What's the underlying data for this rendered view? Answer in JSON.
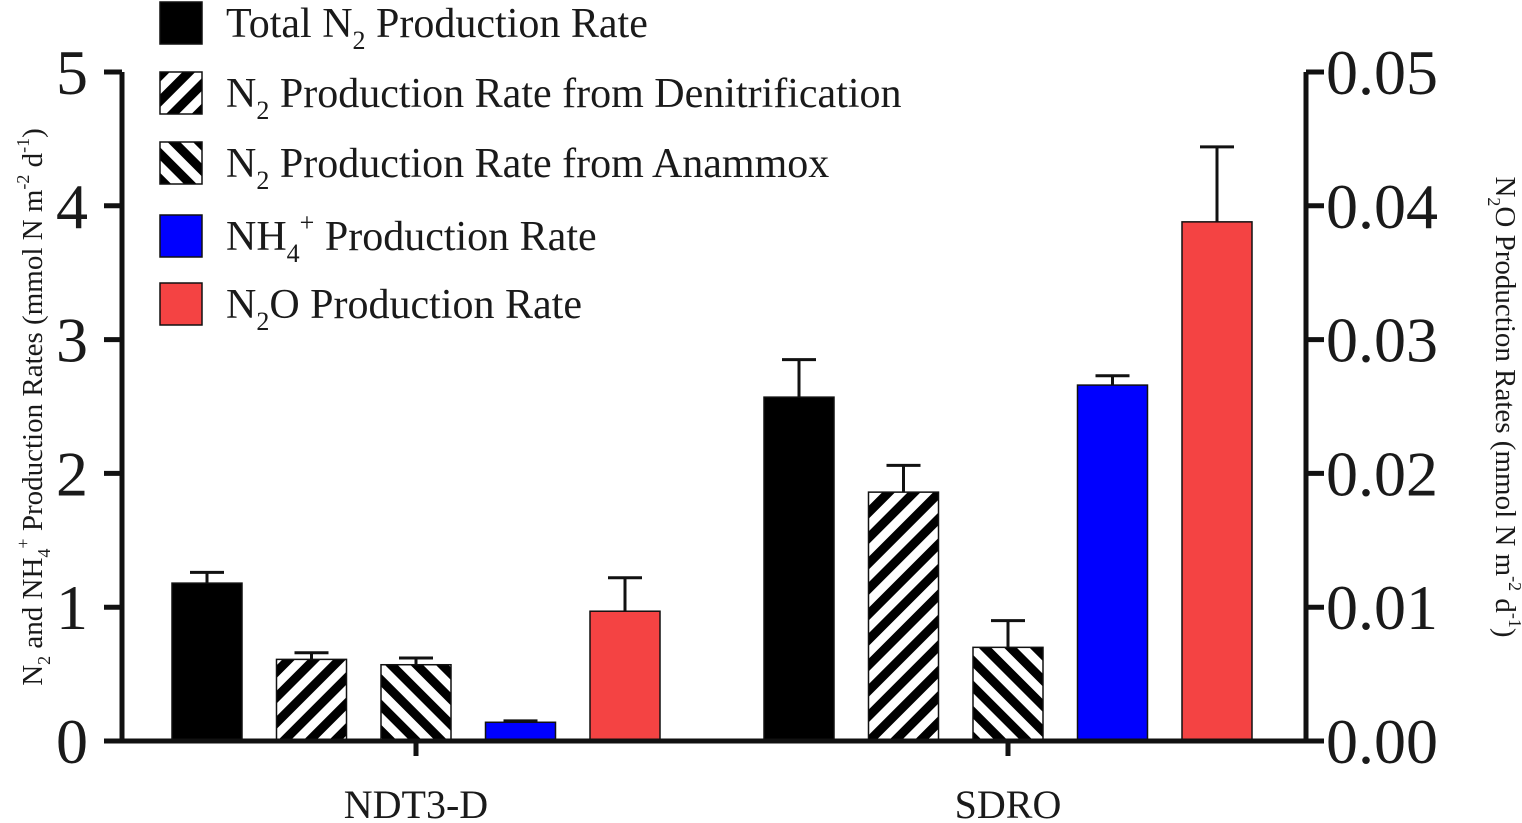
{
  "chart_data": {
    "type": "bar",
    "categories": [
      "NDT3-D",
      "SDRO"
    ],
    "left_axis": {
      "label_parts": [
        "N",
        "2",
        " and NH",
        "4",
        "+",
        " Production Rates (mmol N m",
        "-2",
        " d",
        "-1",
        ")"
      ],
      "ylim": [
        0,
        5
      ],
      "ticks": [
        "0",
        "1",
        "2",
        "3",
        "4",
        "5"
      ]
    },
    "right_axis": {
      "label_parts": [
        "N",
        "2",
        "O Production Rates (mmol N m",
        "-2",
        " d",
        "-1",
        ")"
      ],
      "ylim": [
        0,
        0.05
      ],
      "ticks": [
        "0.00",
        "0.01",
        "0.02",
        "0.03",
        "0.04",
        "0.05"
      ]
    },
    "series": [
      {
        "key": "total_n2",
        "legend_parts": [
          "Total N",
          "2",
          " Production Rate"
        ],
        "axis": "left",
        "fill": "black",
        "color": "#000000",
        "values": [
          1.18,
          2.57
        ],
        "errors": [
          0.08,
          0.28
        ]
      },
      {
        "key": "denitrification",
        "legend_parts": [
          "N",
          "2",
          " Production Rate from Denitrification"
        ],
        "axis": "left",
        "fill": "hatch-back",
        "color": "#000000",
        "values": [
          0.61,
          1.86
        ],
        "errors": [
          0.05,
          0.2
        ]
      },
      {
        "key": "anammox",
        "legend_parts": [
          "N",
          "2",
          " Production Rate from Anammox"
        ],
        "axis": "left",
        "fill": "hatch-forward",
        "color": "#000000",
        "values": [
          0.57,
          0.7
        ],
        "errors": [
          0.05,
          0.2
        ]
      },
      {
        "key": "nh4",
        "legend_parts": [
          "NH",
          "4",
          "+",
          " Production Rate"
        ],
        "axis": "left",
        "fill": "blue",
        "color": "#0000ff",
        "values": [
          0.14,
          2.66
        ],
        "errors": [
          0.01,
          0.07
        ]
      },
      {
        "key": "n2o",
        "legend_parts": [
          "N",
          "2",
          "O Production Rate"
        ],
        "axis": "right",
        "fill": "red",
        "color": "#f44343",
        "values": [
          0.0097,
          0.0388
        ],
        "errors": [
          0.0025,
          0.0056
        ]
      }
    ],
    "legend_position": "top-left",
    "grid": false
  }
}
